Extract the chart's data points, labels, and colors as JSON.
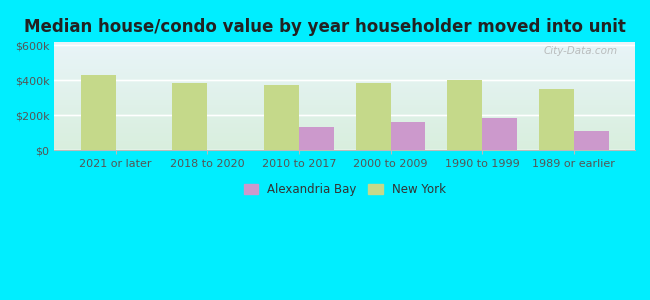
{
  "title": "Median house/condo value by year householder moved into unit",
  "categories": [
    "2021 or later",
    "2018 to 2020",
    "2010 to 2017",
    "2000 to 2009",
    "1990 to 1999",
    "1989 or earlier"
  ],
  "alexandria_bay": [
    0,
    0,
    130000,
    158000,
    185000,
    110000
  ],
  "new_york": [
    430000,
    383000,
    375000,
    385000,
    402000,
    348000
  ],
  "alexandria_color": "#cc99cc",
  "new_york_color": "#c5d98a",
  "background_outer": "#00eeff",
  "grad_top": "#e8f4f8",
  "grad_bottom": "#d8eedd",
  "yticks": [
    0,
    200000,
    400000,
    600000
  ],
  "ylabels": [
    "$0",
    "$200k",
    "$400k",
    "$600k"
  ],
  "ylim": [
    0,
    620000
  ],
  "watermark": "City-Data.com",
  "bar_width": 0.38,
  "legend_labels": [
    "Alexandria Bay",
    "New York"
  ],
  "title_fontsize": 12,
  "tick_fontsize": 8,
  "legend_fontsize": 8.5
}
